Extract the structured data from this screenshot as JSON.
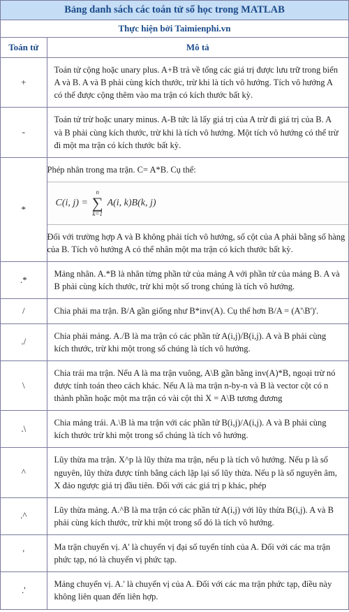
{
  "colors": {
    "header_bg": "#c5ddf5",
    "header_text": "#1a4a8a",
    "border": "#7a7a9e",
    "body_text": "#222222"
  },
  "title": "Bảng danh sách các toán tử số học trong MATLAB",
  "subtitle": "Thực hiện bởi Taimienphi.vn",
  "columns": {
    "op": "Toán tử",
    "desc": "Mô tả"
  },
  "rows": {
    "plus": {
      "op": "+",
      "desc": "Toán tử cộng hoặc unary plus. A+B trả về tổng các giá trị được lưu trữ trong biến A và B. A và B phải cùng kích thước, trừ khi là tích vô hướng. Tích vô hướng A có thể được cộng thêm vào ma trận có kích thước bất kỳ."
    },
    "minus": {
      "op": "-",
      "desc": "Toán tử trừ hoặc unary minus. A-B tức là lấy giá trị của A trừ đi giá trị của B. A và B phải cùng kích thước, trừ khi là tích vô hướng. Một tích vô hướng có thể trừ đi một ma trận có kích thước bất kỳ."
    },
    "times": {
      "op": "*",
      "intro": "Phép nhân trong ma trận. C= A*B. Cụ thể:",
      "formula": {
        "lhs": "C(i, j) =",
        "sup": "n",
        "sub": "k=1",
        "rhs": "A(i, k)B(k, j)"
      },
      "outro": "Đối với trường hợp A và B không phải tích vô hướng, số cột của A phải bằng số hàng của B. Tích vô hướng A có thể nhân một ma trận có kích thước bất kỳ."
    },
    "dot_times": {
      "op": ".*",
      "desc": "Mảng nhân. A.*B là nhân từng phần tử của mảng A với phần tử của mảng B. A và B phải cùng kích thước, trừ khi một số trong chúng là tích vô hướng."
    },
    "rdiv": {
      "op": "/",
      "desc": "Chia phải ma trận. B/A gần giống như B*inv(A). Cụ thể hơn B/A = (A'\\B')'."
    },
    "dot_rdiv": {
      "op": "./",
      "desc": "Chia phải mảng. A./B là ma trận có các phần tử A(i,j)/B(i,j). A và B phải cùng kích thước, trừ khi một trong số chúng là tích vô hướng."
    },
    "ldiv": {
      "op": "\\",
      "desc": "Chia trái ma trận. Nếu A là ma trận vuông, A\\B gần bằng inv(A)*B, ngoại trừ nó được tính toán theo cách khác. Nếu A là ma trận n-by-n và B là vector cột có n thành phần hoặc một ma trận có vài cột thì X = A\\B tương đương"
    },
    "dot_ldiv": {
      "op": ".\\",
      "desc": "Chia mảng trái. A.\\B là ma trận với các phần tử B(i,j)/A(i,j). A và B phải cùng kích thước trừ khi một trong số chúng là tích vô hướng."
    },
    "pow": {
      "op": "^",
      "desc": "Lũy thừa ma trận. X^p là lũy thừa ma trận, nếu p là tích vô hướng. Nếu p là số nguyên, lũy thừa được tính bằng cách lặp lại số lũy thừa. Nếu p là số nguyên âm, X đảo ngược giá trị đầu tiên. Đối với các giá trị p khác, phép"
    },
    "dot_pow": {
      "op": ".^",
      "desc": "Lũy thừa mảng. A.^B là ma trận có các phần tử A(i,j) với lũy thừa B(i,j). A và B phải cùng kích thước, trừ khi một trong số đó là tích vô hướng."
    },
    "transpose": {
      "op": "'",
      "desc": "Ma trận chuyển vị. A' là chuyển vị đại số tuyến tính của A. Đối với các ma trận phức tạp, nó là chuyển vị phức tạp."
    },
    "dot_transpose": {
      "op": ".'",
      "desc": "Mảng chuyển vị. A.' là chuyển vị của A. Đối với các ma trận phức tạp, điều này không liên quan đến liên hợp."
    }
  }
}
